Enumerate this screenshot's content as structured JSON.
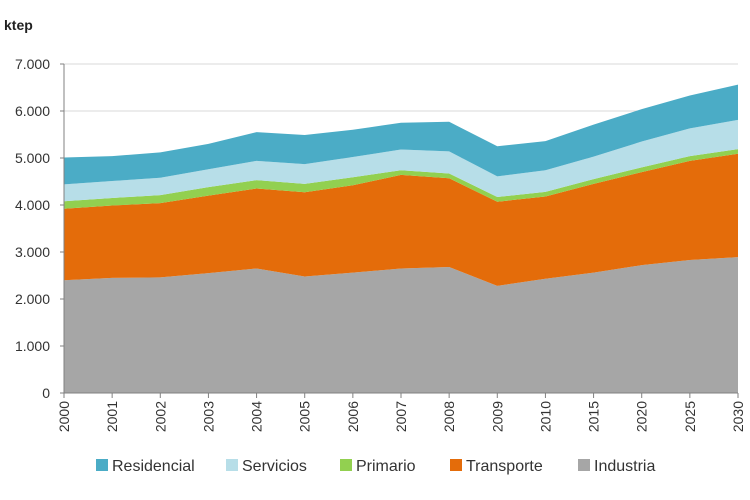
{
  "chart_data": {
    "type": "area",
    "stacked": true,
    "title": "",
    "ylabel": "ktep",
    "xlabel": "",
    "ylim": [
      0,
      7000
    ],
    "yticks": [
      0,
      1000,
      2000,
      3000,
      4000,
      5000,
      6000,
      7000
    ],
    "ytick_labels": [
      "0",
      "1.000",
      "2.000",
      "3.000",
      "4.000",
      "5.000",
      "6.000",
      "7.000"
    ],
    "categories": [
      "2000",
      "2001",
      "2002",
      "2003",
      "2004",
      "2005",
      "2006",
      "2007",
      "2008",
      "2009",
      "2010",
      "2015",
      "2020",
      "2025",
      "2030"
    ],
    "grid": "horizontal",
    "legend_position": "bottom",
    "series": [
      {
        "name": "Industria",
        "color": "#a6a6a6",
        "values": [
          2400,
          2450,
          2460,
          2550,
          2650,
          2480,
          2560,
          2650,
          2680,
          2280,
          2430,
          2560,
          2720,
          2830,
          2890
        ]
      },
      {
        "name": "Transporte",
        "color": "#e46c0a",
        "values": [
          1520,
          1540,
          1580,
          1650,
          1700,
          1790,
          1860,
          1990,
          1890,
          1790,
          1750,
          1890,
          1980,
          2110,
          2200
        ]
      },
      {
        "name": "Primario",
        "color": "#92d050",
        "values": [
          160,
          160,
          170,
          180,
          180,
          180,
          170,
          100,
          100,
          100,
          100,
          100,
          100,
          100,
          100
        ]
      },
      {
        "name": "Servicios",
        "color": "#b7dee8",
        "values": [
          360,
          360,
          370,
          380,
          410,
          420,
          430,
          440,
          470,
          440,
          460,
          480,
          550,
          590,
          620
        ]
      },
      {
        "name": "Residencial",
        "color": "#4bacc6",
        "values": [
          570,
          530,
          540,
          540,
          610,
          620,
          580,
          570,
          630,
          640,
          620,
          680,
          690,
          700,
          750
        ]
      }
    ],
    "legend_order": [
      "Residencial",
      "Servicios",
      "Primario",
      "Transporte",
      "Industria"
    ]
  }
}
